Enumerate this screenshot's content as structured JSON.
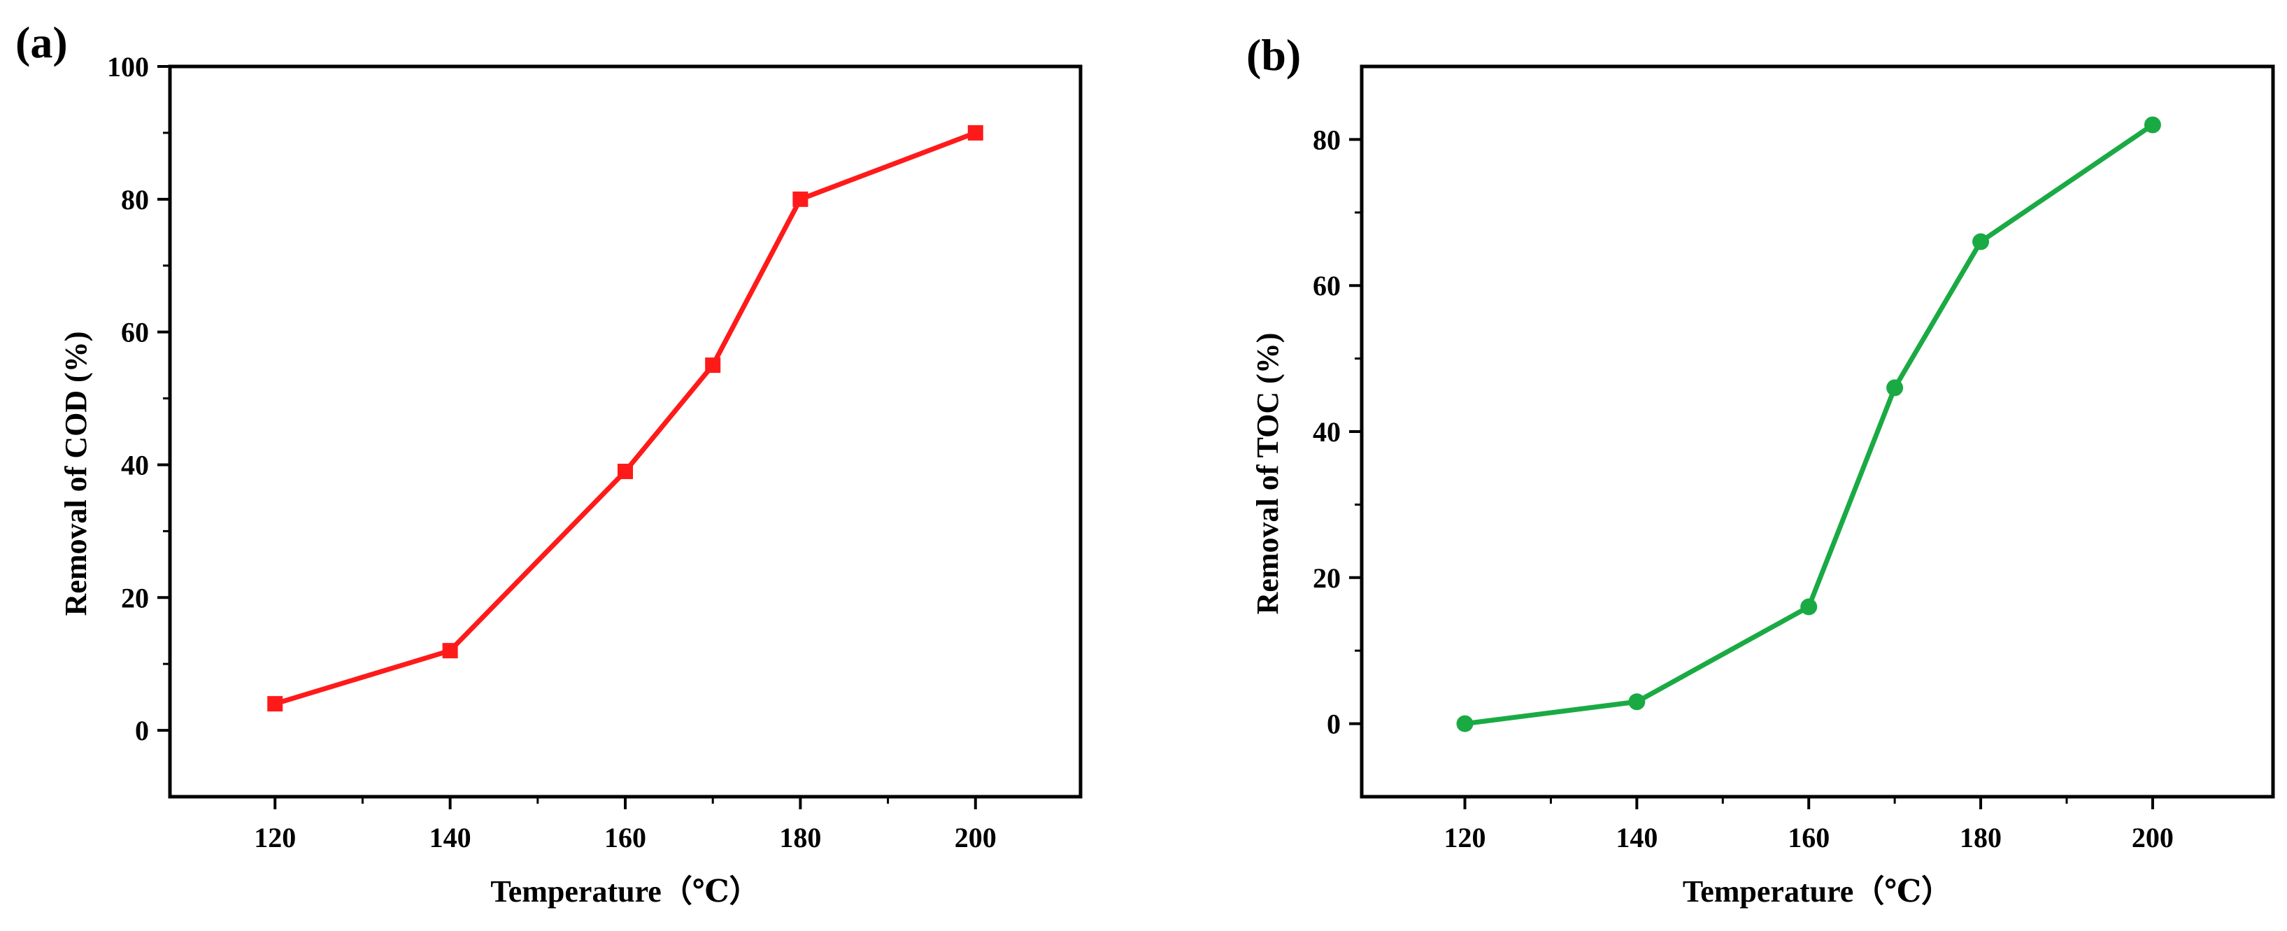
{
  "chart_data": [
    {
      "type": "line",
      "panel_label": "(a)",
      "x": [
        120,
        140,
        160,
        170,
        180,
        200
      ],
      "series": [
        {
          "name": "COD removal",
          "values": [
            4,
            12,
            39,
            55,
            80,
            90
          ],
          "color": "#ff1a1a",
          "marker": "square"
        }
      ],
      "xlabel": "Temperature（℃）",
      "ylabel": "Removal  of  COD (%)",
      "xlim": [
        108,
        212
      ],
      "ylim": [
        -10,
        100
      ],
      "xticks": [
        120,
        140,
        160,
        180,
        200
      ],
      "yticks": [
        0,
        20,
        40,
        60,
        80,
        100
      ],
      "grid": false
    },
    {
      "type": "line",
      "panel_label": "(b)",
      "x": [
        120,
        140,
        160,
        170,
        180,
        200
      ],
      "series": [
        {
          "name": "TOC removal",
          "values": [
            0,
            3,
            16,
            46,
            66,
            82
          ],
          "color": "#1aaa44",
          "marker": "circle"
        }
      ],
      "xlabel": "Temperature（℃）",
      "ylabel": "Removal   of  TOC (%)",
      "xlim": [
        108,
        214
      ],
      "ylim": [
        -10,
        90
      ],
      "xticks": [
        120,
        140,
        160,
        180,
        200
      ],
      "yticks": [
        0,
        20,
        40,
        60,
        80
      ],
      "grid": false
    }
  ]
}
